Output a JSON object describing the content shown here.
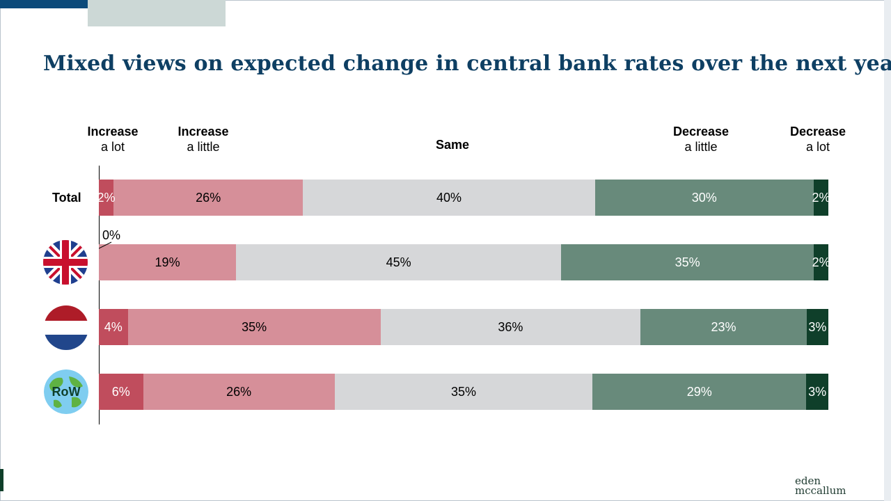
{
  "title": "Mixed views on expected change in central bank rates over the next year",
  "headers": {
    "inc_lot": {
      "bold": "Increase",
      "sub": "a lot"
    },
    "inc_little": {
      "bold": "Increase",
      "sub": "a little"
    },
    "same": {
      "bold": "Same",
      "sub": ""
    },
    "dec_little": {
      "bold": "Decrease",
      "sub": "a little"
    },
    "dec_lot": {
      "bold": "Decrease",
      "sub": "a lot"
    }
  },
  "rows": {
    "total_label": "Total",
    "row_label": "RoW"
  },
  "callout": "0%",
  "logo": {
    "line1": "eden",
    "line2": "mccallum"
  },
  "colors": {
    "increase_a_lot": "#c04d5d",
    "increase_a_little": "#d68f99",
    "same": "#d6d7d9",
    "decrease_a_little": "#688a7b",
    "decrease_a_lot": "#0f3f2a"
  },
  "chart_data": {
    "type": "bar",
    "orientation": "horizontal",
    "stacked": true,
    "title": "Mixed views on expected change in central bank rates over the next year",
    "categories": [
      "Total",
      "UK",
      "Netherlands",
      "RoW"
    ],
    "series": [
      {
        "name": "Increase a lot",
        "values": [
          2,
          0,
          4,
          6
        ],
        "labels": [
          "2%",
          "",
          "4%",
          "6%"
        ]
      },
      {
        "name": "Increase a little",
        "values": [
          26,
          19,
          35,
          26
        ],
        "labels": [
          "26%",
          "19%",
          "35%",
          "26%"
        ]
      },
      {
        "name": "Same",
        "values": [
          40,
          45,
          36,
          35
        ],
        "labels": [
          "40%",
          "45%",
          "36%",
          "35%"
        ]
      },
      {
        "name": "Decrease a little",
        "values": [
          30,
          35,
          23,
          29
        ],
        "labels": [
          "30%",
          "35%",
          "23%",
          "29%"
        ]
      },
      {
        "name": "Decrease a lot",
        "values": [
          2,
          2,
          3,
          3
        ],
        "labels": [
          "2%",
          "2%",
          "3%",
          "3%"
        ]
      }
    ],
    "legend": "top"
  }
}
